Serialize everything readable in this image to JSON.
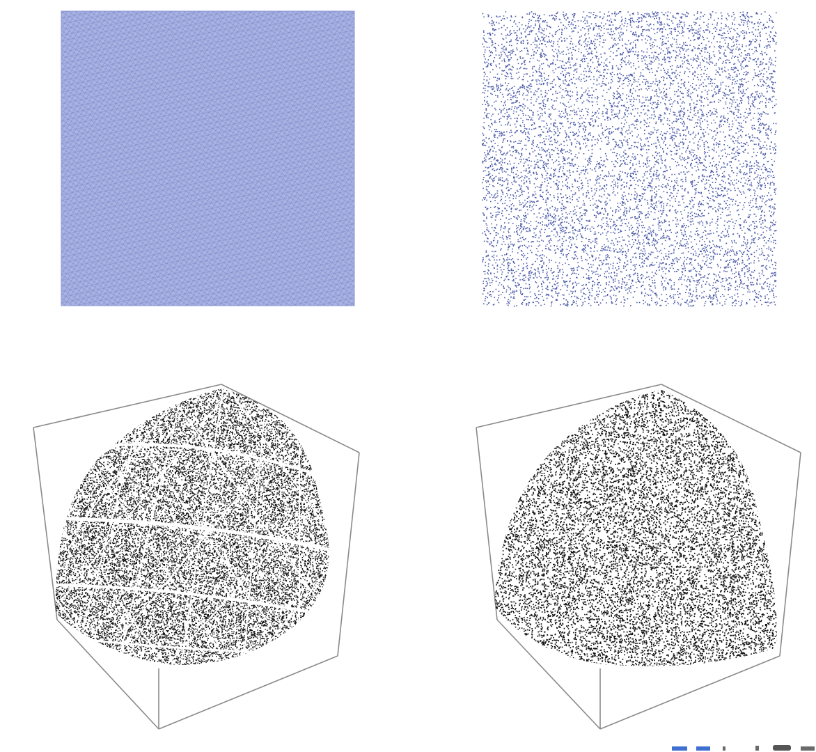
{
  "colors": {
    "blue_points": "#4b5aa8",
    "lattice_fill": "#aab3e2",
    "lattice_line": "#5562b0",
    "black_points": "#111111",
    "frame": "#8a8a8a",
    "dash_blue": "#3f6fd0",
    "dash_dark": "#6a6a6a"
  },
  "chart_data": [
    {
      "type": "scatter",
      "panel": "top-left",
      "pattern": "regular-lattice",
      "dimensions": 2,
      "xlim": [
        0,
        1
      ],
      "ylim": [
        0,
        1
      ]
    },
    {
      "type": "scatter",
      "panel": "top-right",
      "pattern": "random-uniform",
      "dimensions": 2,
      "xlim": [
        0,
        1
      ],
      "ylim": [
        0,
        1
      ]
    },
    {
      "type": "scatter",
      "panel": "bottom-left",
      "pattern": "structured-points-on-sphere-octant",
      "dimensions": 3,
      "frame": "cube"
    },
    {
      "type": "scatter",
      "panel": "bottom-right",
      "pattern": "random-points-on-sphere-octant",
      "dimensions": 3,
      "frame": "cube"
    }
  ]
}
